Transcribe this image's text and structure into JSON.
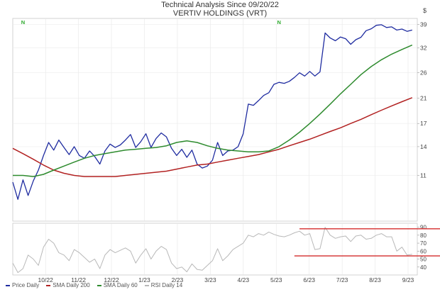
{
  "title": "Technical Analysis Since 09/20/22",
  "subtitle": "VERTIV HOLDINGS (VRT)",
  "currency_symbol": "$",
  "chart_data": {
    "type": "line",
    "title": "Technical Analysis Since 09/20/22",
    "subtitle": "VERTIV HOLDINGS (VRT)",
    "x_tick_labels": [
      "10/22",
      "11/22",
      "12/22",
      "1/23",
      "2/23",
      "3/23",
      "4/23",
      "5/23",
      "6/23",
      "7/23",
      "8/23",
      "9/23"
    ],
    "price_axis": {
      "scale": "log",
      "ticks": [
        11,
        14,
        17,
        21,
        26,
        32,
        39
      ],
      "ylim": [
        7.5,
        41
      ]
    },
    "rsi_axis": {
      "ticks": [
        40,
        50,
        60,
        70,
        80,
        90
      ],
      "ylim": [
        30,
        95
      ]
    },
    "price_flags": [
      {
        "x": 1.0,
        "label": "N"
      },
      {
        "x": 26.0,
        "label": "N"
      }
    ],
    "rsi_reference_lines": [
      {
        "value": 88,
        "from_x": 28,
        "to_x": 53
      },
      {
        "value": 54,
        "from_x": 27.5,
        "to_x": 53
      }
    ],
    "series": [
      {
        "name": "Price Daily",
        "color": "#1f2ca0",
        "panel": "price",
        "x": [
          0,
          0.5,
          1,
          1.5,
          2,
          2.5,
          3,
          3.5,
          4,
          4.5,
          5,
          5.5,
          6,
          6.5,
          7,
          7.5,
          8,
          8.5,
          9,
          9.5,
          10,
          10.5,
          11,
          11.5,
          12,
          12.5,
          13,
          13.5,
          14,
          14.5,
          15,
          15.5,
          16,
          16.5,
          17,
          17.5,
          18,
          18.5,
          19,
          19.5,
          20,
          20.5,
          21,
          21.5,
          22,
          22.5,
          23,
          23.5,
          24,
          24.5,
          25,
          25.5,
          26,
          26.5,
          27,
          27.5,
          28,
          28.5,
          29,
          29.5,
          30,
          30.5,
          31,
          31.5,
          32,
          32.5,
          33,
          33.5,
          34,
          34.5,
          35,
          35.5,
          36,
          36.5,
          37,
          37.5,
          38,
          38.5,
          39
        ],
        "values": [
          10.4,
          9.0,
          10.6,
          9.3,
          10.5,
          11.5,
          13.0,
          14.5,
          13.6,
          14.8,
          13.9,
          13.1,
          14.0,
          13.0,
          12.7,
          13.5,
          12.9,
          12.1,
          13.5,
          14.3,
          13.9,
          14.2,
          14.8,
          15.5,
          13.9,
          14.6,
          15.6,
          13.9,
          15.0,
          15.7,
          15.2,
          13.8,
          13.0,
          13.7,
          12.8,
          13.6,
          12.1,
          11.7,
          11.9,
          12.5,
          14.5,
          13.0,
          13.5,
          13.6,
          14.0,
          15.6,
          20.0,
          19.8,
          20.6,
          21.5,
          22.0,
          23.6,
          24.0,
          23.8,
          24.2,
          25.0,
          26.0,
          25.3,
          26.3,
          25.3,
          26.2,
          36.3,
          34.8,
          34.0,
          35.1,
          34.6,
          33.0,
          34.3,
          35.0,
          37.0,
          37.6,
          38.7,
          38.9,
          38.0,
          38.2,
          37.2,
          37.5,
          36.8,
          37.2
        ]
      },
      {
        "name": "SMA Daily 200",
        "color": "#b22222",
        "panel": "price",
        "x": [
          0,
          1,
          2,
          3,
          4,
          5,
          6,
          7,
          8,
          9,
          10,
          11,
          12,
          13,
          14,
          15,
          16,
          17,
          18,
          19,
          20,
          21,
          22,
          23,
          24,
          25,
          26,
          27,
          28,
          29,
          30,
          31,
          32,
          33,
          34,
          35,
          36,
          37,
          38,
          39
        ],
        "values": [
          13.8,
          13.2,
          12.6,
          12.0,
          11.5,
          11.2,
          11.0,
          10.9,
          10.9,
          10.9,
          10.9,
          11.0,
          11.1,
          11.2,
          11.3,
          11.4,
          11.6,
          11.8,
          12.0,
          12.1,
          12.3,
          12.5,
          12.7,
          12.9,
          13.1,
          13.4,
          13.7,
          14.1,
          14.5,
          14.9,
          15.4,
          15.9,
          16.4,
          17.0,
          17.6,
          18.3,
          19.0,
          19.7,
          20.4,
          21.1
        ]
      },
      {
        "name": "SMA Daily 60",
        "color": "#2e8b2e",
        "panel": "price",
        "x": [
          0,
          1,
          2,
          3,
          4,
          5,
          6,
          7,
          8,
          9,
          10,
          11,
          12,
          13,
          14,
          15,
          16,
          17,
          18,
          19,
          20,
          21,
          22,
          23,
          24,
          25,
          26,
          27,
          28,
          29,
          30,
          31,
          32,
          33,
          34,
          35,
          36,
          37,
          38,
          39
        ],
        "values": [
          11.0,
          11.0,
          10.9,
          11.1,
          11.5,
          11.9,
          12.3,
          12.7,
          13.0,
          13.2,
          13.4,
          13.6,
          13.7,
          13.8,
          13.9,
          14.1,
          14.5,
          14.7,
          14.5,
          14.1,
          13.8,
          13.6,
          13.5,
          13.4,
          13.4,
          13.5,
          14.0,
          14.8,
          15.8,
          17.0,
          18.4,
          20.0,
          21.8,
          23.6,
          25.6,
          27.4,
          29.0,
          30.4,
          31.6,
          32.8
        ]
      },
      {
        "name": "RSI Daily 14",
        "color": "#b8b8b8",
        "panel": "rsi",
        "x": [
          0,
          0.5,
          1,
          1.5,
          2,
          2.5,
          3,
          3.5,
          4,
          4.5,
          5,
          5.5,
          6,
          6.5,
          7,
          7.5,
          8,
          8.5,
          9,
          9.5,
          10,
          10.5,
          11,
          11.5,
          12,
          12.5,
          13,
          13.5,
          14,
          14.5,
          15,
          15.5,
          16,
          16.5,
          17,
          17.5,
          18,
          18.5,
          19,
          19.5,
          20,
          20.5,
          21,
          21.5,
          22,
          22.5,
          23,
          23.5,
          24,
          24.5,
          25,
          25.5,
          26,
          26.5,
          27,
          27.5,
          28,
          28.5,
          29,
          29.5,
          30,
          30.5,
          31,
          31.5,
          32,
          32.5,
          33,
          33.5,
          34,
          34.5,
          35,
          35.5,
          36,
          36.5,
          37,
          37.5,
          38,
          38.5,
          39
        ],
        "values": [
          45,
          33,
          38,
          55,
          50,
          42,
          65,
          75,
          70,
          58,
          55,
          48,
          62,
          58,
          52,
          46,
          50,
          38,
          55,
          62,
          58,
          61,
          64,
          60,
          45,
          55,
          63,
          50,
          60,
          66,
          62,
          45,
          38,
          40,
          34,
          44,
          37,
          36,
          42,
          48,
          63,
          48,
          54,
          62,
          66,
          70,
          80,
          78,
          82,
          80,
          84,
          81,
          79,
          78,
          80,
          83,
          85,
          80,
          82,
          62,
          63,
          90,
          80,
          76,
          78,
          79,
          72,
          79,
          80,
          75,
          76,
          80,
          82,
          78,
          78,
          60,
          65,
          55,
          56
        ]
      }
    ]
  }
}
